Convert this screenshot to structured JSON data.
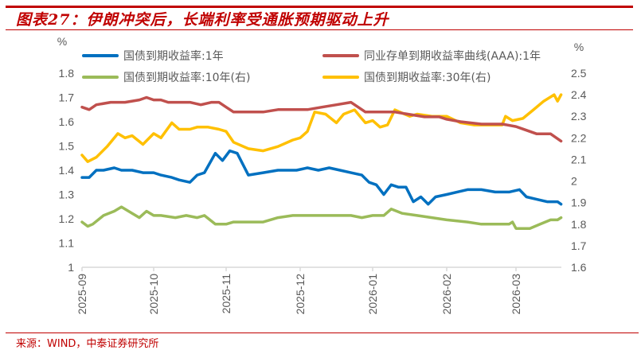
{
  "title": "图表27：伊朗冲突后，长端利率受通胀预期驱动上升",
  "source": "来源：WIND，中泰证券研究所",
  "colors": {
    "accent": "#c00000",
    "blue": "#0070c0",
    "red": "#c0504d",
    "green": "#9bbb59",
    "yellow": "#ffc000",
    "axis": "#d9d9d9",
    "text": "#595959"
  },
  "chart_data": {
    "type": "line",
    "title": "伊朗冲突后，长端利率受通胀预期驱动上升",
    "ylabel_left": "%",
    "ylabel_right": "%",
    "ylim_left": [
      1.0,
      1.8
    ],
    "ylim_right": [
      1.6,
      2.5
    ],
    "yticks_left": [
      "1",
      "1.1",
      "1.2",
      "1.3",
      "1.4",
      "1.5",
      "1.6",
      "1.7",
      "1.8"
    ],
    "yticks_right": [
      "1.6",
      "1.7",
      "1.8",
      "1.9",
      "2",
      "2.1",
      "2.2",
      "2.3",
      "2.4",
      "2.5"
    ],
    "x_tick_labels": [
      "2025-09",
      "2025-10",
      "2025-11",
      "2025-12",
      "2026-01",
      "2026-02",
      "2026-03"
    ],
    "x_range_months": [
      0,
      6.65
    ],
    "grid": false,
    "legend_position": "top",
    "series": [
      {
        "name": "国债到期收益率:1年",
        "axis": "left",
        "color": "#0070c0",
        "x": [
          0,
          0.1,
          0.2,
          0.3,
          0.45,
          0.55,
          0.7,
          0.85,
          1.0,
          1.1,
          1.25,
          1.35,
          1.5,
          1.6,
          1.7,
          1.85,
          1.95,
          2.05,
          2.15,
          2.3,
          2.5,
          2.7,
          2.8,
          2.95,
          3.1,
          3.25,
          3.4,
          3.55,
          3.7,
          3.85,
          3.95,
          4.05,
          4.15,
          4.25,
          4.35,
          4.45,
          4.55,
          4.65,
          4.75,
          4.85,
          5.0,
          5.15,
          5.3,
          5.5,
          5.7,
          5.9,
          6.05,
          6.15,
          6.3,
          6.45,
          6.6,
          6.65
        ],
        "y": [
          1.37,
          1.37,
          1.4,
          1.4,
          1.41,
          1.4,
          1.4,
          1.39,
          1.39,
          1.38,
          1.37,
          1.36,
          1.35,
          1.38,
          1.39,
          1.47,
          1.44,
          1.48,
          1.47,
          1.38,
          1.39,
          1.4,
          1.4,
          1.4,
          1.41,
          1.4,
          1.41,
          1.4,
          1.39,
          1.38,
          1.35,
          1.34,
          1.3,
          1.34,
          1.33,
          1.33,
          1.27,
          1.29,
          1.26,
          1.29,
          1.3,
          1.31,
          1.32,
          1.32,
          1.31,
          1.31,
          1.32,
          1.29,
          1.28,
          1.27,
          1.27,
          1.26
        ]
      },
      {
        "name": "同业存单到期收益率曲线(AAA):1年",
        "axis": "left",
        "color": "#c0504d",
        "x": [
          0,
          0.1,
          0.2,
          0.4,
          0.6,
          0.8,
          0.9,
          1.0,
          1.1,
          1.2,
          1.35,
          1.5,
          1.65,
          1.8,
          1.9,
          2.0,
          2.1,
          2.3,
          2.5,
          2.7,
          2.9,
          3.1,
          3.3,
          3.5,
          3.7,
          3.9,
          4.1,
          4.3,
          4.5,
          4.7,
          4.9,
          5.0,
          5.2,
          5.5,
          5.8,
          6.0,
          6.1,
          6.3,
          6.5,
          6.65
        ],
        "y": [
          1.66,
          1.65,
          1.67,
          1.68,
          1.68,
          1.69,
          1.7,
          1.69,
          1.69,
          1.68,
          1.68,
          1.68,
          1.67,
          1.68,
          1.68,
          1.66,
          1.64,
          1.64,
          1.64,
          1.65,
          1.65,
          1.65,
          1.66,
          1.67,
          1.68,
          1.64,
          1.64,
          1.64,
          1.63,
          1.62,
          1.62,
          1.61,
          1.6,
          1.59,
          1.59,
          1.58,
          1.57,
          1.55,
          1.55,
          1.52
        ]
      },
      {
        "name": "国债到期收益率:10年(右)",
        "axis": "right",
        "color": "#9bbb59",
        "x": [
          0,
          0.08,
          0.15,
          0.3,
          0.45,
          0.55,
          0.7,
          0.8,
          0.9,
          1.0,
          1.1,
          1.3,
          1.45,
          1.6,
          1.7,
          1.85,
          2.0,
          2.1,
          2.3,
          2.5,
          2.7,
          2.9,
          3.0,
          3.15,
          3.3,
          3.5,
          3.7,
          3.85,
          4.0,
          4.15,
          4.25,
          4.4,
          4.6,
          4.8,
          5.0,
          5.3,
          5.5,
          5.7,
          5.9,
          5.95,
          6.0,
          6.2,
          6.35,
          6.5,
          6.6,
          6.65
        ],
        "y": [
          1.81,
          1.79,
          1.8,
          1.84,
          1.86,
          1.88,
          1.85,
          1.83,
          1.86,
          1.84,
          1.84,
          1.83,
          1.84,
          1.83,
          1.84,
          1.8,
          1.8,
          1.81,
          1.81,
          1.81,
          1.83,
          1.84,
          1.84,
          1.84,
          1.84,
          1.84,
          1.84,
          1.83,
          1.84,
          1.84,
          1.87,
          1.85,
          1.84,
          1.83,
          1.82,
          1.81,
          1.8,
          1.8,
          1.8,
          1.81,
          1.78,
          1.78,
          1.8,
          1.82,
          1.82,
          1.83
        ]
      },
      {
        "name": "国债到期收益率:30年(右)",
        "axis": "right",
        "color": "#ffc000",
        "x": [
          0,
          0.08,
          0.2,
          0.35,
          0.5,
          0.6,
          0.7,
          0.85,
          1.0,
          1.1,
          1.25,
          1.35,
          1.5,
          1.6,
          1.75,
          1.9,
          2.0,
          2.1,
          2.3,
          2.5,
          2.7,
          2.9,
          3.0,
          3.1,
          3.2,
          3.35,
          3.5,
          3.6,
          3.75,
          3.9,
          4.0,
          4.1,
          4.2,
          4.3,
          4.5,
          4.6,
          4.8,
          5.0,
          5.2,
          5.4,
          5.6,
          5.8,
          5.85,
          5.95,
          6.1,
          6.25,
          6.4,
          6.55,
          6.6,
          6.65
        ],
        "y": [
          2.12,
          2.09,
          2.11,
          2.16,
          2.22,
          2.2,
          2.21,
          2.17,
          2.22,
          2.2,
          2.27,
          2.24,
          2.24,
          2.25,
          2.25,
          2.24,
          2.23,
          2.18,
          2.15,
          2.14,
          2.16,
          2.19,
          2.2,
          2.23,
          2.32,
          2.31,
          2.27,
          2.31,
          2.33,
          2.27,
          2.28,
          2.25,
          2.26,
          2.33,
          2.3,
          2.31,
          2.3,
          2.3,
          2.27,
          2.26,
          2.26,
          2.26,
          2.3,
          2.28,
          2.29,
          2.33,
          2.37,
          2.4,
          2.37,
          2.4
        ]
      }
    ]
  }
}
